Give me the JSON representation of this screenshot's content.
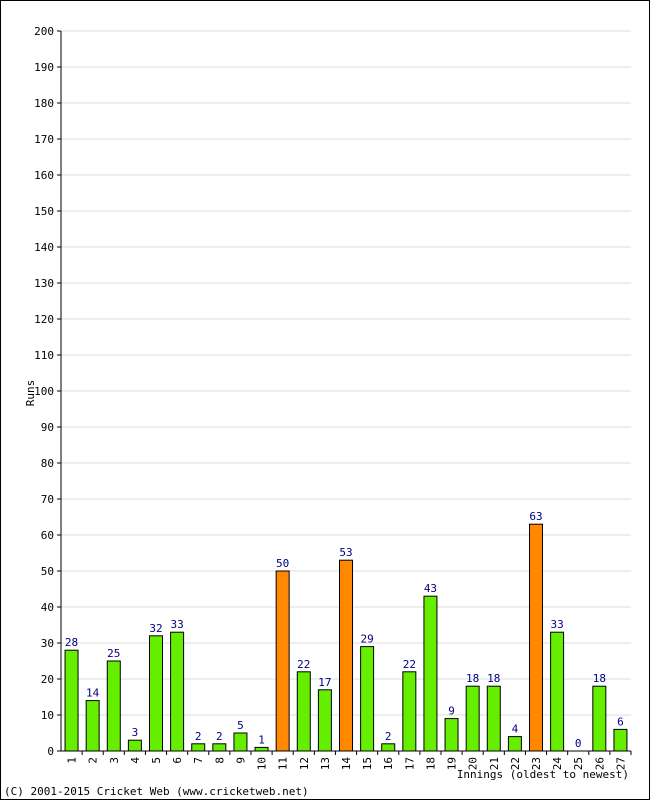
{
  "chart_data": {
    "type": "bar",
    "categories": [
      "1",
      "2",
      "3",
      "4",
      "5",
      "6",
      "7",
      "8",
      "9",
      "10",
      "11",
      "12",
      "13",
      "14",
      "15",
      "16",
      "17",
      "18",
      "19",
      "20",
      "21",
      "22",
      "23",
      "24",
      "25",
      "26",
      "27"
    ],
    "values": [
      28,
      14,
      25,
      3,
      32,
      33,
      2,
      2,
      5,
      1,
      50,
      22,
      17,
      53,
      29,
      2,
      22,
      43,
      9,
      18,
      18,
      4,
      63,
      33,
      0,
      18,
      6
    ],
    "highlight_threshold": 50,
    "colors": {
      "normal": "#66ee00",
      "fifty_plus": "#ff8800",
      "outline": "#000000",
      "label": "#000080",
      "grid": "#dddddd"
    },
    "ylabel": "Runs",
    "xlabel": "Innings (oldest to newest)",
    "ylim": [
      0,
      200
    ],
    "ytick_step": 10,
    "grid": true
  },
  "footer": {
    "copyright": "(C) 2001-2015 Cricket Web (www.cricketweb.net)"
  }
}
